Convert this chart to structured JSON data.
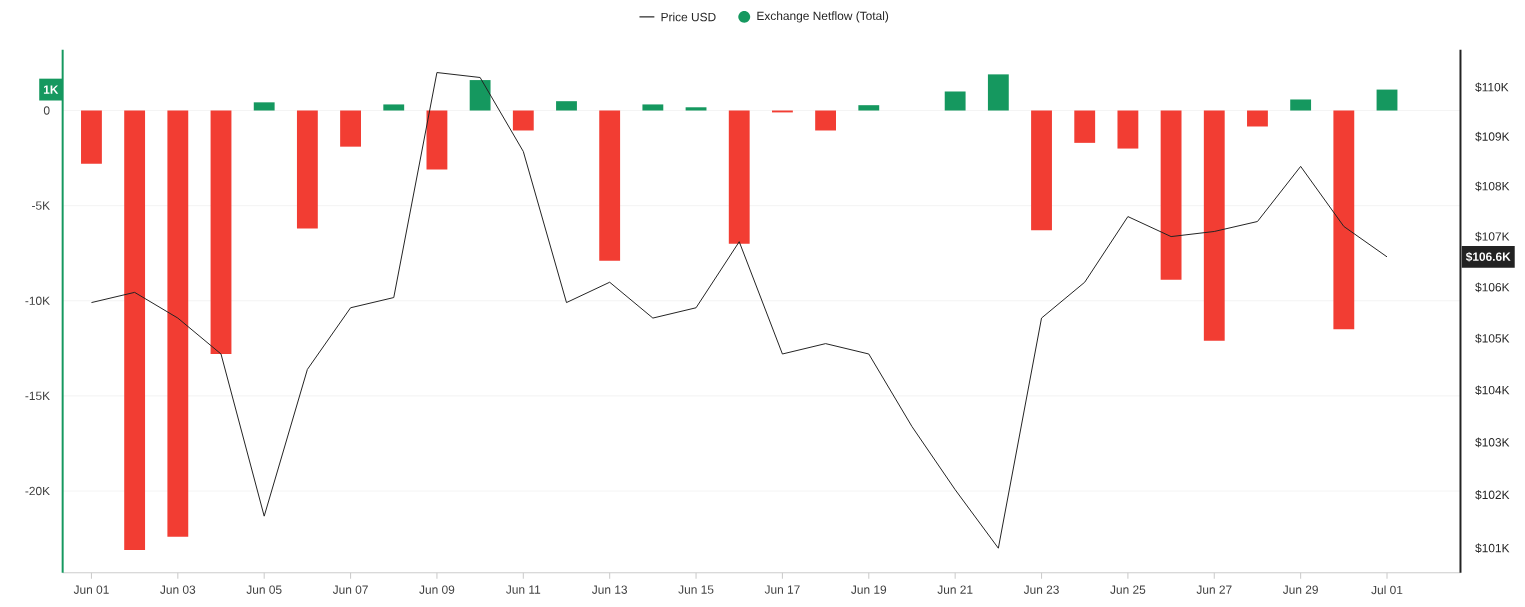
{
  "chart_data": {
    "type": "bar",
    "categories": [
      "Jun 01",
      null,
      "Jun 03",
      null,
      "Jun 05",
      null,
      "Jun 07",
      null,
      "Jun 09",
      null,
      "Jun 11",
      null,
      "Jun 13",
      null,
      "Jun 15",
      null,
      "Jun 17",
      null,
      "Jun 19",
      null,
      "Jun 21",
      null,
      "Jun 23",
      null,
      "Jun 25",
      null,
      "Jun 27",
      null,
      "Jun 29",
      null,
      "Jul 01"
    ],
    "series": [
      {
        "name": "Price USD",
        "type": "line",
        "axis": "y2",
        "color": "#222222",
        "values": [
          105700,
          105900,
          105400,
          104700,
          101600,
          104400,
          105600,
          105800,
          110300,
          110200,
          108700,
          105700,
          106100,
          105400,
          105600,
          106900,
          104700,
          104900,
          104700,
          103300,
          102100,
          101000,
          105400,
          106100,
          107400,
          107000,
          107100,
          107300,
          108400,
          107200,
          106600
        ]
      },
      {
        "name": "Exchange Netflow (Total)",
        "color": "#15985f",
        "values": [
          -2800,
          -23100,
          -22400,
          -12800,
          430,
          -6200,
          -1900,
          320,
          -3100,
          1600,
          -1050,
          490,
          -7900,
          320,
          170,
          -7000,
          -100,
          -1050,
          280,
          null,
          1000,
          1900,
          -6300,
          -1700,
          -2000,
          -8900,
          -12100,
          -840,
          580,
          -11500,
          1100
        ],
        "colors": [
          "#f23d33",
          "#f23d33",
          "#f23d33",
          "#f23d33",
          "#15985f",
          "#f23d33",
          "#f23d33",
          "#15985f",
          "#f23d33",
          "#15985f",
          "#f23d33",
          "#15985f",
          "#f23d33",
          "#15985f",
          "#15985f",
          "#f23d33",
          "#f23d33",
          "#f23d33",
          "#15985f",
          "#15985f",
          "#15985f",
          "#15985f",
          "#f23d33",
          "#f23d33",
          "#f23d33",
          "#f23d33",
          "#f23d33",
          "#f23d33",
          "#15985f",
          "#f23d33",
          "#15985f"
        ]
      }
    ],
    "ylim": [
      -24300,
      3200
    ],
    "yticks": [
      {
        "value": -20000,
        "label": "-20K"
      },
      {
        "value": -15000,
        "label": "-15K"
      },
      {
        "value": -10000,
        "label": "-10K"
      },
      {
        "value": -5000,
        "label": "-5K"
      },
      0
    ],
    "y2lim": [
      100540,
      110770
    ],
    "y2ticks": [
      {
        "value": 101000,
        "label": "$101K"
      },
      {
        "value": 102000,
        "label": "$102K"
      },
      {
        "value": 103000,
        "label": "$103K"
      },
      {
        "value": 104000,
        "label": "$104K"
      },
      {
        "value": 105000,
        "label": "$105K"
      },
      {
        "value": 106000,
        "label": "$106K"
      },
      {
        "value": 107000,
        "label": "$107K"
      },
      {
        "value": 108000,
        "label": "$108K"
      },
      {
        "value": 109000,
        "label": "$109K"
      },
      {
        "value": 110000,
        "label": "$110K"
      }
    ],
    "log": "y2",
    "grid": "y",
    "legend": "top",
    "marker": "none",
    "annotations": [
      "1K",
      "$106.6K"
    ]
  }
}
